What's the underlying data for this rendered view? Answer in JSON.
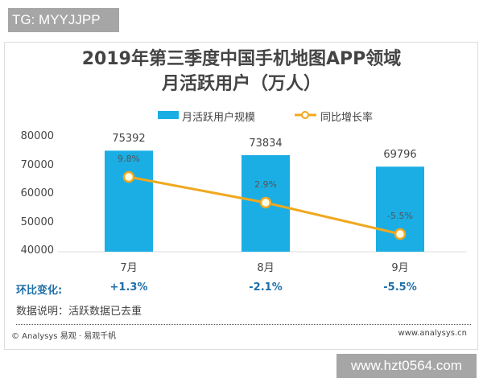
{
  "watermark_top": "TG: MYYJJPP",
  "watermark_bottom": "www.hzt0564.com",
  "chart_data": {
    "type": "bar",
    "title_line1": "2019年第三季度中国手机地图APP领域",
    "title_line2": "月活跃用户（万人）",
    "categories": [
      "7月",
      "8月",
      "9月"
    ],
    "series": [
      {
        "name": "月活跃用户规模",
        "type": "bar",
        "values": [
          75392,
          73834,
          69796
        ],
        "color": "#1aaee5"
      },
      {
        "name": "同比增长率",
        "type": "line",
        "values": [
          9.8,
          2.9,
          -5.5
        ],
        "labels": [
          "9.8%",
          "2.9%",
          "-5.5%"
        ],
        "color": "#f0a81e"
      }
    ],
    "ylim": [
      40000,
      80000
    ],
    "yticks": [
      "80000",
      "70000",
      "60000",
      "50000",
      "40000"
    ],
    "legend": "top",
    "grid": false
  },
  "mom": {
    "label": "环比变化:",
    "values": [
      "+1.3%",
      "-2.1%",
      "-5.5%"
    ],
    "color": "#1f6fa8"
  },
  "note": "数据说明：活跃数据已去重",
  "footer": {
    "left": "© Analysys 易观 · 易观千帆",
    "right": "www.analysys.cn"
  }
}
